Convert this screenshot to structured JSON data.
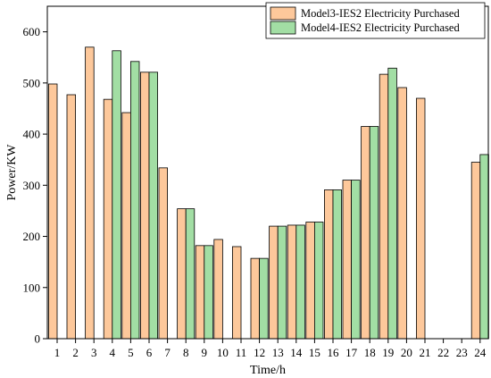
{
  "chart_data": {
    "type": "bar",
    "xlabel": "Time/h",
    "ylabel": "Power/KW",
    "ylim": [
      0,
      650
    ],
    "yticks": [
      0,
      100,
      200,
      300,
      400,
      500,
      600
    ],
    "categories": [
      "1",
      "2",
      "3",
      "4",
      "5",
      "6",
      "7",
      "8",
      "9",
      "10",
      "11",
      "12",
      "13",
      "14",
      "15",
      "16",
      "17",
      "18",
      "19",
      "20",
      "21",
      "22",
      "23",
      "24"
    ],
    "legend_position": "top-right",
    "grid": false,
    "series": [
      {
        "name": "Model3-IES2 Electricity Purchased",
        "color": "#FDC89B",
        "values": [
          498,
          477,
          570,
          468,
          442,
          521,
          334,
          254,
          182,
          194,
          180,
          157,
          220,
          222,
          228,
          291,
          310,
          415,
          517,
          491,
          470,
          0,
          0,
          345
        ]
      },
      {
        "name": "Model4-IES2 Electricity Purchased",
        "color": "#A2DEA4",
        "values": [
          0,
          0,
          0,
          563,
          542,
          521,
          0,
          254,
          182,
          0,
          0,
          157,
          220,
          222,
          228,
          291,
          310,
          415,
          529,
          0,
          0,
          0,
          0,
          360
        ]
      }
    ]
  }
}
